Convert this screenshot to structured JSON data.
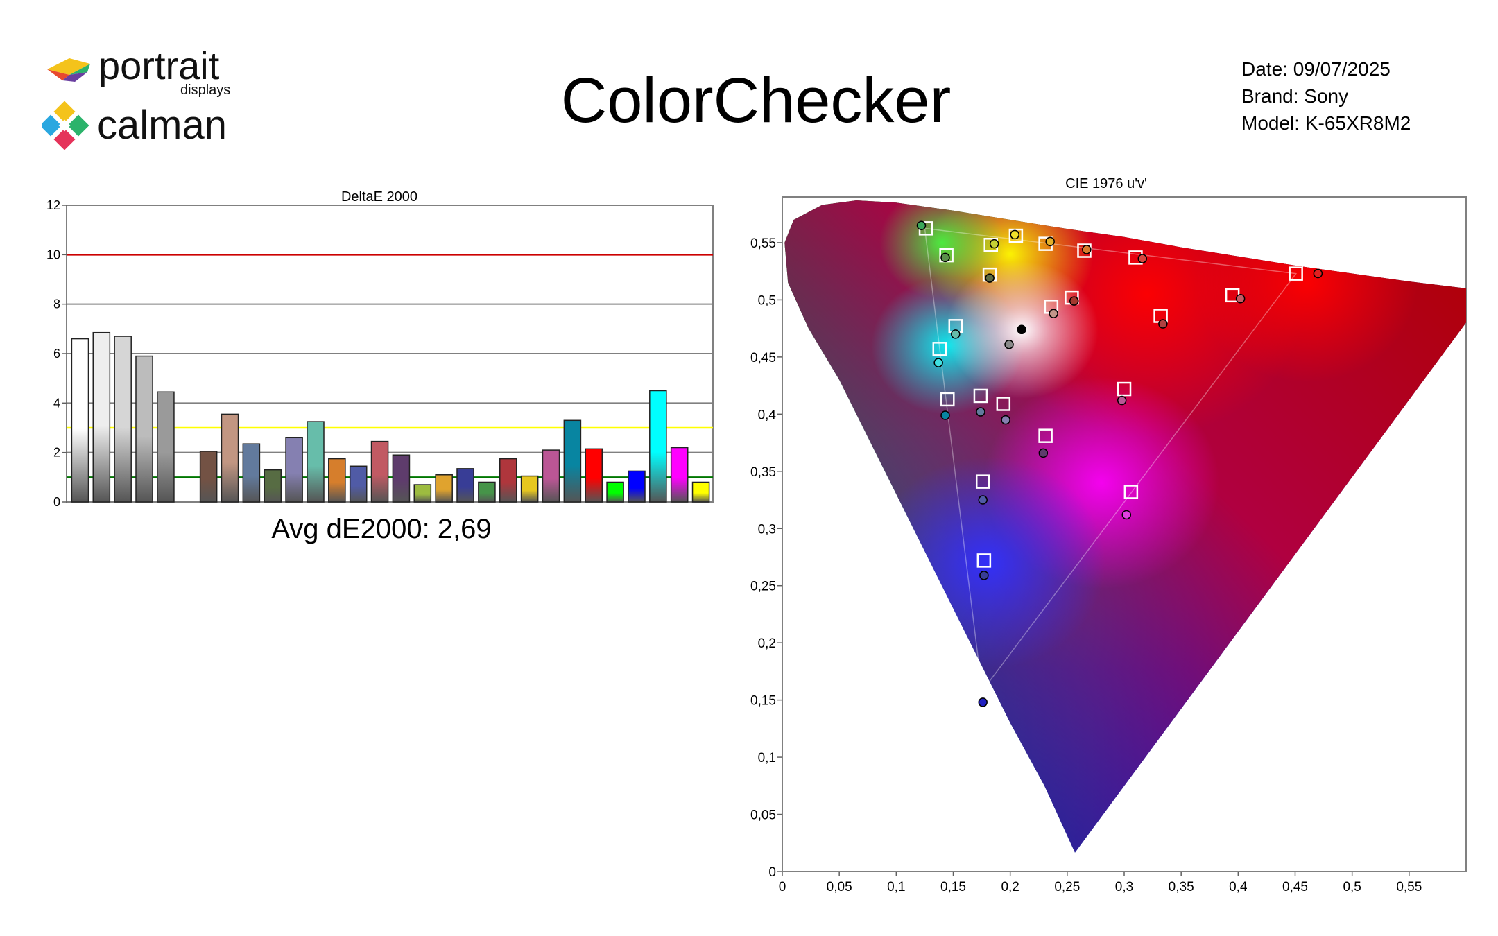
{
  "header": {
    "logo_top_text": "portrait",
    "logo_top_sub": "displays",
    "logo_bottom_text": "calman",
    "title": "ColorChecker"
  },
  "meta": {
    "date_label": "Date:",
    "date_value": "09/07/2025",
    "brand_label": "Brand:",
    "brand_value": "Sony",
    "model_label": "Model:",
    "model_value": "K-65XR8M2"
  },
  "summary": {
    "avg_text": "Avg dE2000: 2,69"
  },
  "chart_data": [
    {
      "type": "bar",
      "title": "DeltaE 2000",
      "ylim": [
        0,
        12
      ],
      "yticks": [
        "0",
        "2",
        "4",
        "6",
        "8",
        "10",
        "12"
      ],
      "threshold_lines": [
        {
          "value": 10,
          "color": "#cc0000"
        },
        {
          "value": 3,
          "color": "#ffff00"
        },
        {
          "value": 1,
          "color": "#007700"
        }
      ],
      "bars": [
        {
          "value": 6.6,
          "color": "#ffffff"
        },
        {
          "value": 6.85,
          "color": "#eeeeee"
        },
        {
          "value": 6.7,
          "color": "#d6d6d6"
        },
        {
          "value": 5.9,
          "color": "#bcbcbc"
        },
        {
          "value": 4.45,
          "color": "#9a9a9a"
        },
        {
          "value": null,
          "color": ""
        },
        {
          "value": 2.05,
          "color": "#735244"
        },
        {
          "value": 3.55,
          "color": "#c29682"
        },
        {
          "value": 2.35,
          "color": "#627a9d"
        },
        {
          "value": 1.3,
          "color": "#576c43"
        },
        {
          "value": 2.6,
          "color": "#8580b1"
        },
        {
          "value": 3.25,
          "color": "#67bdaa"
        },
        {
          "value": 1.75,
          "color": "#d67e2c"
        },
        {
          "value": 1.45,
          "color": "#505ba6"
        },
        {
          "value": 2.45,
          "color": "#c15a63"
        },
        {
          "value": 1.9,
          "color": "#5e3c6c"
        },
        {
          "value": 0.7,
          "color": "#9dbc40"
        },
        {
          "value": 1.1,
          "color": "#e0a32e"
        },
        {
          "value": 1.35,
          "color": "#383d96"
        },
        {
          "value": 0.8,
          "color": "#469449"
        },
        {
          "value": 1.75,
          "color": "#af363c"
        },
        {
          "value": 1.05,
          "color": "#e7c71f"
        },
        {
          "value": 2.1,
          "color": "#bb5695"
        },
        {
          "value": 3.3,
          "color": "#0885a1"
        },
        {
          "value": 2.15,
          "color": "#ff0000"
        },
        {
          "value": 0.8,
          "color": "#00ff00"
        },
        {
          "value": 1.25,
          "color": "#0000ff"
        },
        {
          "value": 4.5,
          "color": "#00ffff"
        },
        {
          "value": 2.2,
          "color": "#ff00ff"
        },
        {
          "value": 0.8,
          "color": "#ffff00"
        }
      ]
    },
    {
      "type": "scatter",
      "title": "CIE 1976 u'v'",
      "xlim": [
        0,
        0.6
      ],
      "ylim": [
        0,
        0.59
      ],
      "xticks": [
        {
          "v": 0,
          "label": "0"
        },
        {
          "v": 0.05,
          "label": "0,05"
        },
        {
          "v": 0.1,
          "label": "0,1"
        },
        {
          "v": 0.15,
          "label": "0,15"
        },
        {
          "v": 0.2,
          "label": "0,2"
        },
        {
          "v": 0.25,
          "label": "0,25"
        },
        {
          "v": 0.3,
          "label": "0,3"
        },
        {
          "v": 0.35,
          "label": "0,35"
        },
        {
          "v": 0.4,
          "label": "0,4"
        },
        {
          "v": 0.45,
          "label": "0,45"
        },
        {
          "v": 0.5,
          "label": "0,5"
        },
        {
          "v": 0.55,
          "label": "0,55"
        }
      ],
      "yticks": [
        {
          "v": 0,
          "label": "0"
        },
        {
          "v": 0.05,
          "label": "0,05"
        },
        {
          "v": 0.1,
          "label": "0,1"
        },
        {
          "v": 0.15,
          "label": "0,15"
        },
        {
          "v": 0.2,
          "label": "0,2"
        },
        {
          "v": 0.25,
          "label": "0,25"
        },
        {
          "v": 0.3,
          "label": "0,3"
        },
        {
          "v": 0.35,
          "label": "0,35"
        },
        {
          "v": 0.4,
          "label": "0,4"
        },
        {
          "v": 0.45,
          "label": "0,45"
        },
        {
          "v": 0.5,
          "label": "0,5"
        },
        {
          "v": 0.55,
          "label": "0,55"
        }
      ],
      "gamut_triangle": [
        [
          0.4507,
          0.5229
        ],
        [
          0.125,
          0.5625
        ],
        [
          0.1754,
          0.1579
        ]
      ],
      "white_point": [
        0.2105,
        0.4737
      ],
      "targets": [
        {
          "u": 0.126,
          "v": 0.5625
        },
        {
          "u": 0.144,
          "v": 0.539
        },
        {
          "u": 0.183,
          "v": 0.548
        },
        {
          "u": 0.205,
          "v": 0.556
        },
        {
          "u": 0.231,
          "v": 0.549
        },
        {
          "u": 0.265,
          "v": 0.543
        },
        {
          "u": 0.31,
          "v": 0.537
        },
        {
          "u": 0.4507,
          "v": 0.5229
        },
        {
          "u": 0.395,
          "v": 0.504
        },
        {
          "u": 0.182,
          "v": 0.522
        },
        {
          "u": 0.254,
          "v": 0.502
        },
        {
          "u": 0.236,
          "v": 0.494
        },
        {
          "u": 0.332,
          "v": 0.486
        },
        {
          "u": 0.152,
          "v": 0.477
        },
        {
          "u": 0.138,
          "v": 0.457
        },
        {
          "u": 0.145,
          "v": 0.413
        },
        {
          "u": 0.174,
          "v": 0.416
        },
        {
          "u": 0.194,
          "v": 0.409
        },
        {
          "u": 0.3,
          "v": 0.422
        },
        {
          "u": 0.231,
          "v": 0.381
        },
        {
          "u": 0.176,
          "v": 0.341
        },
        {
          "u": 0.306,
          "v": 0.332
        },
        {
          "u": 0.177,
          "v": 0.272
        },
        {
          "u": 0.1754,
          "v": 0.1579
        }
      ],
      "measured": [
        {
          "u": 0.122,
          "v": 0.565,
          "color": "#3aa85a"
        },
        {
          "u": 0.143,
          "v": 0.537,
          "color": "#5a8f4a"
        },
        {
          "u": 0.186,
          "v": 0.549,
          "color": "#c6d035"
        },
        {
          "u": 0.204,
          "v": 0.557,
          "color": "#f2e02a"
        },
        {
          "u": 0.235,
          "v": 0.551,
          "color": "#e2b02a"
        },
        {
          "u": 0.267,
          "v": 0.544,
          "color": "#d97a2c"
        },
        {
          "u": 0.316,
          "v": 0.536,
          "color": "#d8453e"
        },
        {
          "u": 0.47,
          "v": 0.523,
          "color": "#e02020"
        },
        {
          "u": 0.402,
          "v": 0.501,
          "color": "#c55a63"
        },
        {
          "u": 0.182,
          "v": 0.519,
          "color": "#5c6b40"
        },
        {
          "u": 0.256,
          "v": 0.499,
          "color": "#a4382e"
        },
        {
          "u": 0.238,
          "v": 0.488,
          "color": "#c2968a"
        },
        {
          "u": 0.334,
          "v": 0.479,
          "color": "#b04040"
        },
        {
          "u": 0.152,
          "v": 0.47,
          "color": "#67bdaa"
        },
        {
          "u": 0.137,
          "v": 0.445,
          "color": "#40e0e0"
        },
        {
          "u": 0.143,
          "v": 0.399,
          "color": "#0885a1"
        },
        {
          "u": 0.174,
          "v": 0.402,
          "color": "#627a9d"
        },
        {
          "u": 0.196,
          "v": 0.395,
          "color": "#8580b1"
        },
        {
          "u": 0.298,
          "v": 0.412,
          "color": "#bb5695"
        },
        {
          "u": 0.229,
          "v": 0.366,
          "color": "#5e3c6c"
        },
        {
          "u": 0.176,
          "v": 0.325,
          "color": "#505ba6"
        },
        {
          "u": 0.302,
          "v": 0.312,
          "color": "#e040e0"
        },
        {
          "u": 0.177,
          "v": 0.259,
          "color": "#383d96"
        },
        {
          "u": 0.176,
          "v": 0.148,
          "color": "#2020c0"
        },
        {
          "u": 0.199,
          "v": 0.461,
          "color": "#8a8a8a"
        },
        {
          "u": 0.21,
          "v": 0.474,
          "color": "#000000"
        }
      ]
    }
  ]
}
